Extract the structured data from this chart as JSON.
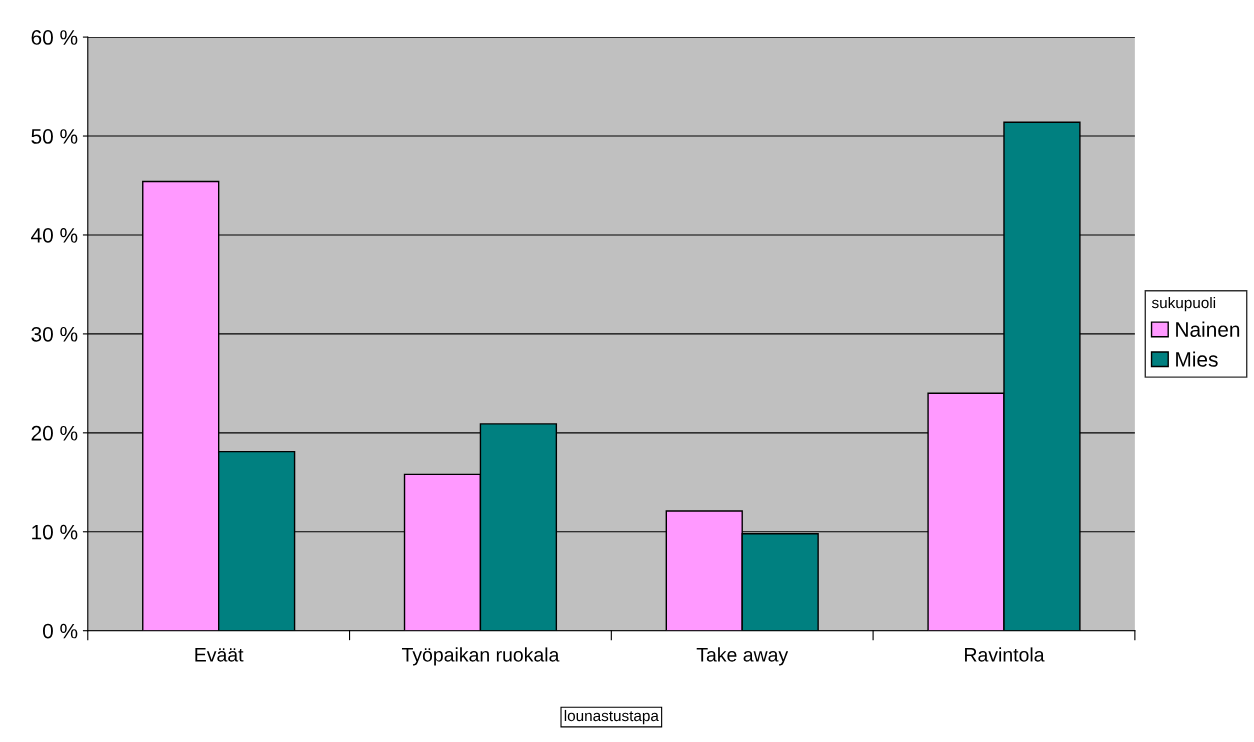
{
  "chart_data": {
    "type": "bar",
    "xlabel": "lounastustapa",
    "legend_title": "sukupuoli",
    "categories": [
      "Eväät",
      "Työpaikan ruokala",
      "Take away",
      "Ravintola"
    ],
    "series": [
      {
        "name": "Nainen",
        "color": "#ff99ff",
        "values": [
          45.4,
          15.8,
          12.1,
          24.0
        ]
      },
      {
        "name": "Mies",
        "color": "#008080",
        "values": [
          18.1,
          20.9,
          9.8,
          51.4
        ]
      }
    ],
    "ylim": [
      0,
      60
    ],
    "yticks": [
      {
        "value": 0,
        "label": "0 %"
      },
      {
        "value": 10,
        "label": "10 %"
      },
      {
        "value": 20,
        "label": "20 %"
      },
      {
        "value": 30,
        "label": "30 %"
      },
      {
        "value": 40,
        "label": "40 %"
      },
      {
        "value": 50,
        "label": "50 %"
      },
      {
        "value": 60,
        "label": "60 %"
      }
    ],
    "grid": "y",
    "legend": "right"
  }
}
